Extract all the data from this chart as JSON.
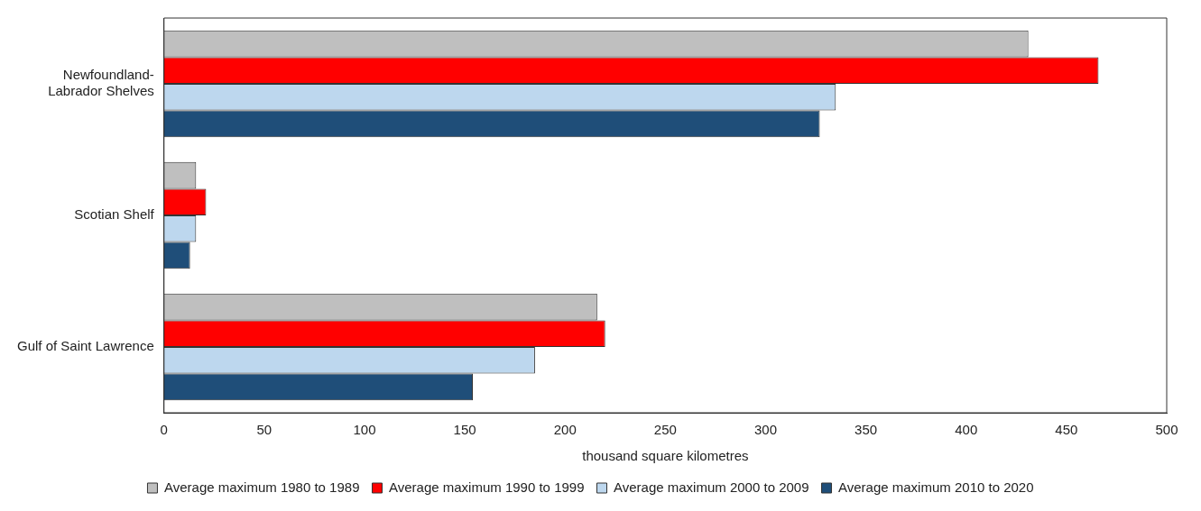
{
  "chart_data": {
    "type": "bar",
    "orientation": "horizontal",
    "xlabel": "thousand square kilometres",
    "categories": [
      "Newfoundland-Labrador Shelves",
      "Scotian Shelf",
      "Gulf of Saint Lawrence"
    ],
    "series": [
      {
        "name": "Average maximum 1980 to 1989",
        "color": "#bfbfbf",
        "values": [
          431,
          16,
          216
        ]
      },
      {
        "name": "Average maximum 1990 to 1999",
        "color": "#ff0000",
        "values": [
          466,
          21,
          220
        ]
      },
      {
        "name": "Average maximum 2000 to 2009",
        "color": "#bdd7ee",
        "values": [
          335,
          16,
          185
        ]
      },
      {
        "name": "Average maximum 2010 to 2020",
        "color": "#1f4e79",
        "values": [
          327,
          13,
          154
        ]
      }
    ],
    "xlim": [
      0,
      500
    ],
    "xticks": [
      0,
      50,
      100,
      150,
      200,
      250,
      300,
      350,
      400,
      450,
      500
    ],
    "grid": false,
    "legend": "bottom"
  }
}
